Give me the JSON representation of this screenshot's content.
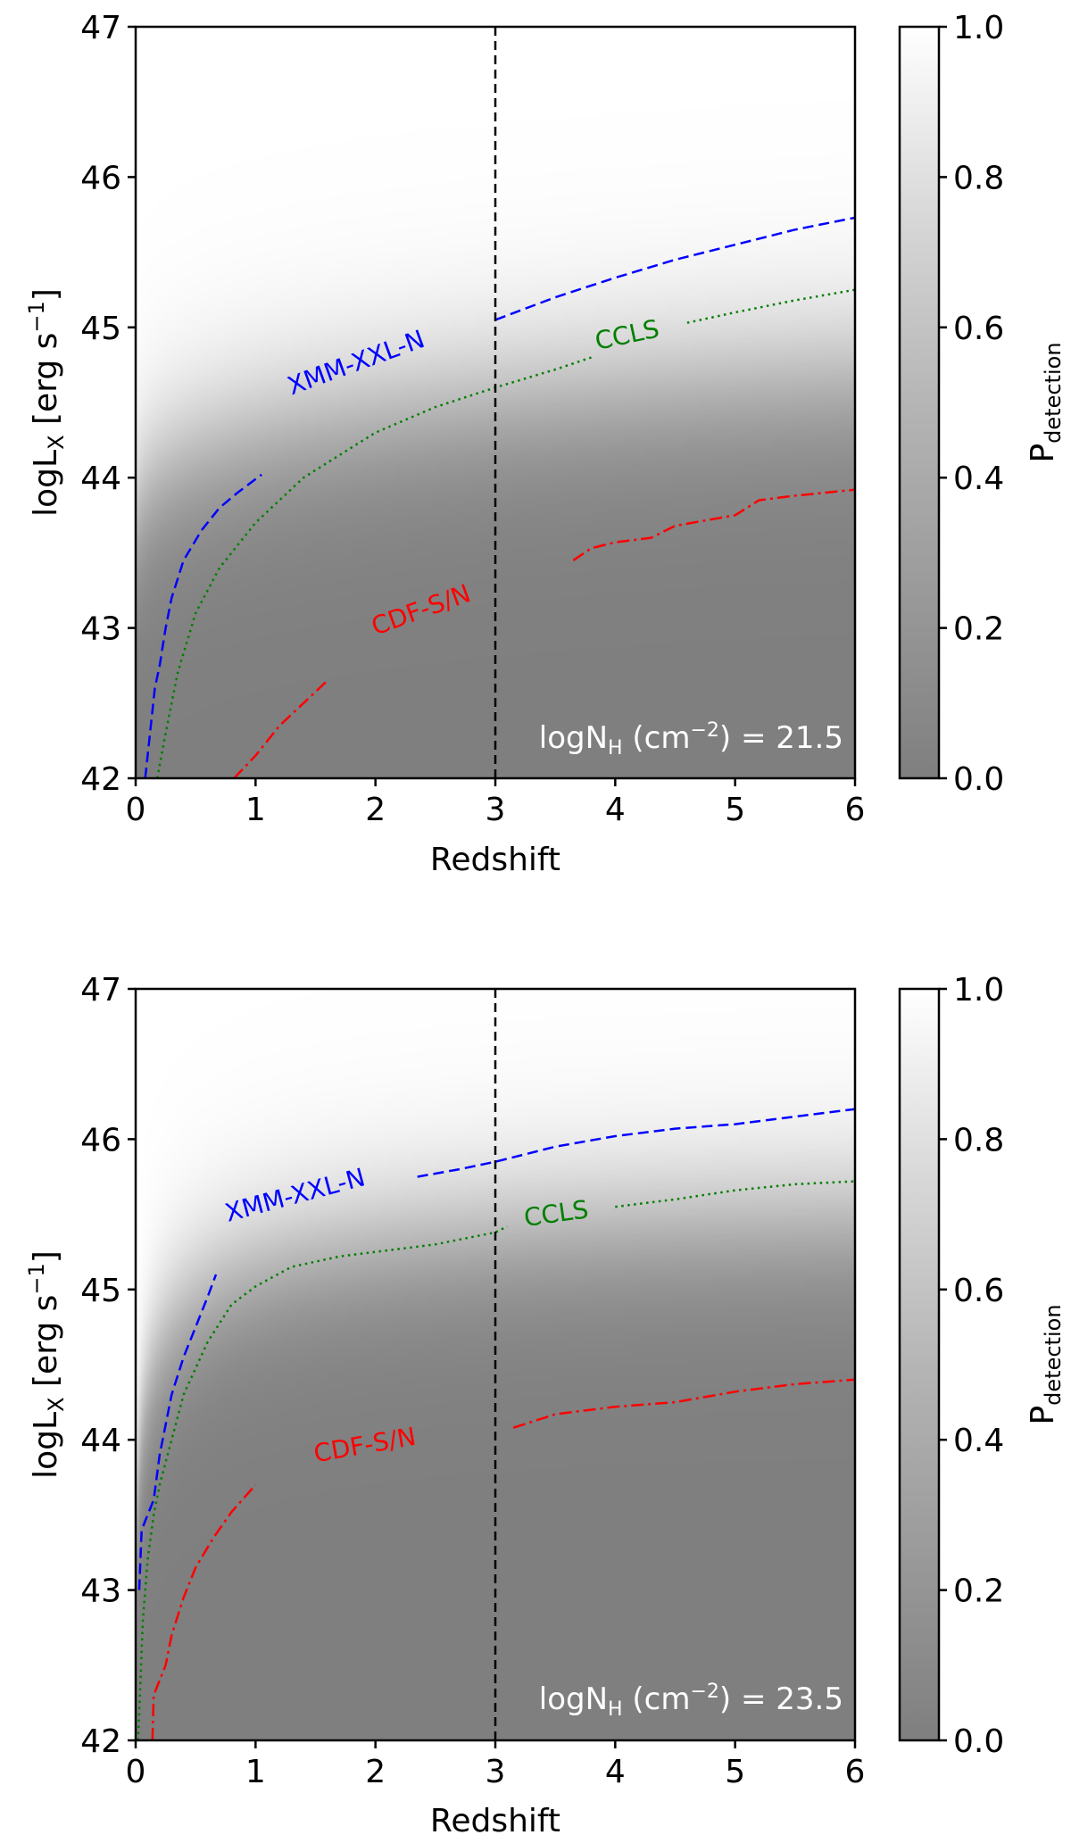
{
  "chart_data": [
    {
      "type": "heatmap",
      "panel": "top",
      "xlabel": "Redshift",
      "ylabel_main": "logL",
      "ylabel_sub": "X",
      "ylabel_units": "[erg s",
      "ylabel_exp": "−1",
      "ylabel_close": "]",
      "xlim": [
        0,
        6
      ],
      "ylim": [
        42,
        47
      ],
      "xticks": [
        "0",
        "1",
        "2",
        "3",
        "4",
        "5",
        "6"
      ],
      "yticks": [
        "42",
        "43",
        "44",
        "45",
        "46",
        "47"
      ],
      "vline_x": 3,
      "annotation": {
        "main": "logN",
        "sub": "H",
        "open": " (cm",
        "exp": "−2",
        "close": ") = 21.5"
      },
      "colorbar": {
        "label_main": "P",
        "label_sub": "detection",
        "ticks": [
          "0.0",
          "0.2",
          "0.4",
          "0.6",
          "0.8",
          "1.0"
        ],
        "range": [
          0,
          1
        ]
      },
      "probability_model": {
        "a": 45.3,
        "b": 1.75,
        "c": 0.6,
        "d": 0.35,
        "width": 0.32
      },
      "series": [
        {
          "name": "XMM-XXL-N",
          "color": "#0000ff",
          "style": "dashed",
          "segments": [
            [
              [
                0.08,
                42.0
              ],
              [
                0.12,
                42.3
              ],
              [
                0.16,
                42.6
              ],
              [
                0.2,
                42.75
              ],
              [
                0.25,
                43.0
              ],
              [
                0.3,
                43.2
              ],
              [
                0.4,
                43.45
              ],
              [
                0.55,
                43.65
              ],
              [
                0.7,
                43.8
              ],
              [
                0.85,
                43.9
              ],
              [
                1.05,
                44.02
              ]
            ],
            [
              [
                3.0,
                45.05
              ],
              [
                3.5,
                45.2
              ],
              [
                4.0,
                45.33
              ],
              [
                4.5,
                45.45
              ],
              [
                5.0,
                45.55
              ],
              [
                5.5,
                45.65
              ],
              [
                6.0,
                45.73
              ]
            ]
          ],
          "label_pos": [
            1.3,
            44.55
          ],
          "label_rot": -20
        },
        {
          "name": "CCLS",
          "color": "#007f00",
          "style": "dotted",
          "segments": [
            [
              [
                0.18,
                42.0
              ],
              [
                0.25,
                42.3
              ],
              [
                0.35,
                42.7
              ],
              [
                0.5,
                43.1
              ],
              [
                0.7,
                43.4
              ],
              [
                1.0,
                43.7
              ],
              [
                1.4,
                44.0
              ],
              [
                2.0,
                44.3
              ],
              [
                2.5,
                44.47
              ],
              [
                3.0,
                44.6
              ],
              [
                3.5,
                44.72
              ],
              [
                3.8,
                44.8
              ]
            ],
            [
              [
                4.6,
                45.03
              ],
              [
                5.0,
                45.1
              ],
              [
                5.5,
                45.18
              ],
              [
                6.0,
                45.25
              ]
            ]
          ],
          "label_pos": [
            3.85,
            44.85
          ],
          "label_rot": -12
        },
        {
          "name": "CDF-S/N",
          "color": "#ff0000",
          "style": "dashdot",
          "segments": [
            [
              [
                0.82,
                42.0
              ],
              [
                1.0,
                42.15
              ],
              [
                1.2,
                42.35
              ],
              [
                1.4,
                42.5
              ],
              [
                1.6,
                42.65
              ]
            ],
            [
              [
                3.65,
                43.45
              ],
              [
                3.8,
                43.53
              ],
              [
                4.0,
                43.57
              ],
              [
                4.3,
                43.6
              ],
              [
                4.5,
                43.68
              ],
              [
                5.0,
                43.75
              ],
              [
                5.2,
                43.85
              ],
              [
                5.5,
                43.88
              ],
              [
                6.0,
                43.92
              ]
            ]
          ],
          "label_pos": [
            2.0,
            42.95
          ],
          "label_rot": -20
        }
      ]
    },
    {
      "type": "heatmap",
      "panel": "bottom",
      "xlabel": "Redshift",
      "ylabel_main": "logL",
      "ylabel_sub": "X",
      "ylabel_units": "[erg s",
      "ylabel_exp": "−1",
      "ylabel_close": "]",
      "xlim": [
        0,
        6
      ],
      "ylim": [
        42,
        47
      ],
      "xticks": [
        "0",
        "1",
        "2",
        "3",
        "4",
        "5",
        "6"
      ],
      "yticks": [
        "42",
        "43",
        "44",
        "45",
        "46",
        "47"
      ],
      "vline_x": 3,
      "annotation": {
        "main": "logN",
        "sub": "H",
        "open": " (cm",
        "exp": "−2",
        "close": ") = 23.5"
      },
      "colorbar": {
        "label_main": "P",
        "label_sub": "detection",
        "ticks": [
          "0.0",
          "0.2",
          "0.4",
          "0.6",
          "0.8",
          "1.0"
        ],
        "range": [
          0,
          1
        ]
      },
      "probability_model": {
        "a": 45.6,
        "b": 3.0,
        "c": 2.0,
        "d": 0.35,
        "width": 0.3
      },
      "series": [
        {
          "name": "XMM-XXL-N",
          "color": "#0000ff",
          "style": "dashed",
          "segments": [
            [
              [
                0.03,
                43.0
              ],
              [
                0.05,
                43.4
              ],
              [
                0.1,
                43.5
              ],
              [
                0.15,
                43.6
              ],
              [
                0.2,
                43.9
              ],
              [
                0.25,
                44.1
              ],
              [
                0.3,
                44.3
              ],
              [
                0.4,
                44.55
              ],
              [
                0.5,
                44.75
              ],
              [
                0.6,
                44.95
              ],
              [
                0.67,
                45.1
              ]
            ],
            [
              [
                2.35,
                45.75
              ],
              [
                2.7,
                45.8
              ],
              [
                3.0,
                45.85
              ],
              [
                3.5,
                45.95
              ],
              [
                4.0,
                46.02
              ],
              [
                4.5,
                46.07
              ],
              [
                5.0,
                46.1
              ],
              [
                5.5,
                46.15
              ],
              [
                6.0,
                46.2
              ]
            ]
          ],
          "label_pos": [
            0.77,
            45.45
          ],
          "label_rot": -15
        },
        {
          "name": "CCLS",
          "color": "#007f00",
          "style": "dotted",
          "segments": [
            [
              [
                0.02,
                42.0
              ],
              [
                0.06,
                42.8
              ],
              [
                0.1,
                43.2
              ],
              [
                0.15,
                43.5
              ],
              [
                0.2,
                43.7
              ],
              [
                0.3,
                44.0
              ],
              [
                0.4,
                44.3
              ],
              [
                0.6,
                44.65
              ],
              [
                0.8,
                44.9
              ],
              [
                1.0,
                45.02
              ],
              [
                1.3,
                45.15
              ],
              [
                1.7,
                45.22
              ],
              [
                2.0,
                45.25
              ],
              [
                2.5,
                45.3
              ],
              [
                3.0,
                45.38
              ],
              [
                3.1,
                45.42
              ]
            ],
            [
              [
                4.0,
                45.55
              ],
              [
                4.5,
                45.6
              ],
              [
                5.0,
                45.66
              ],
              [
                5.5,
                45.7
              ],
              [
                6.0,
                45.72
              ]
            ]
          ],
          "label_pos": [
            3.25,
            45.42
          ],
          "label_rot": -8
        },
        {
          "name": "CDF-S/N",
          "color": "#ff0000",
          "style": "dashdot",
          "segments": [
            [
              [
                0.14,
                42.0
              ],
              [
                0.15,
                42.3
              ],
              [
                0.25,
                42.5
              ],
              [
                0.3,
                42.7
              ],
              [
                0.4,
                42.95
              ],
              [
                0.5,
                43.15
              ],
              [
                0.65,
                43.35
              ],
              [
                0.8,
                43.52
              ],
              [
                1.0,
                43.7
              ]
            ],
            [
              [
                3.15,
                44.08
              ],
              [
                3.5,
                44.17
              ],
              [
                4.0,
                44.22
              ],
              [
                4.5,
                44.25
              ],
              [
                5.0,
                44.32
              ],
              [
                5.5,
                44.37
              ],
              [
                6.0,
                44.4
              ]
            ]
          ],
          "label_pos": [
            1.5,
            43.85
          ],
          "label_rot": -10
        }
      ]
    }
  ]
}
